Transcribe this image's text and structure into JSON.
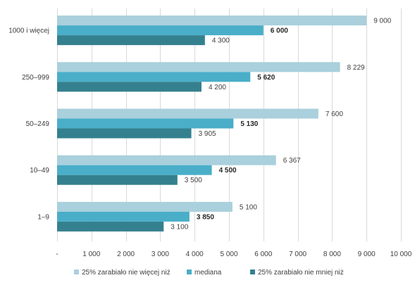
{
  "chart_data": {
    "type": "bar",
    "orientation": "horizontal",
    "title": "",
    "xlabel": "",
    "ylabel": "",
    "categories": [
      "1000 i więcej",
      "250–999",
      "50–249",
      "10–49",
      "1–9"
    ],
    "series": [
      {
        "name": "25% zarabiało nie więcej niż",
        "color": "#a9d0dc",
        "values": [
          9000,
          8229,
          7600,
          6367,
          5100
        ],
        "labels": [
          "9 000",
          "8 229",
          "7 600",
          "6 367",
          "5 100"
        ],
        "bold": false
      },
      {
        "name": "mediana",
        "color": "#4aaec9",
        "values": [
          6000,
          5620,
          5130,
          4500,
          3850
        ],
        "labels": [
          "6 000",
          "5 620",
          "5 130",
          "4 500",
          "3 850"
        ],
        "bold": true
      },
      {
        "name": "25% zarabiało nie mniej niż",
        "color": "#35808f",
        "values": [
          4300,
          4200,
          3905,
          3500,
          3100
        ],
        "labels": [
          "4 300",
          "4 200",
          "3 905",
          "3 500",
          "3 100"
        ],
        "bold": false
      }
    ],
    "xlim": [
      0,
      10000
    ],
    "xticks": [
      0,
      1000,
      2000,
      3000,
      4000,
      5000,
      6000,
      7000,
      8000,
      9000,
      10000
    ],
    "xtick_labels": [
      "-",
      "1 000",
      "2 000",
      "3 000",
      "4 000",
      "5 000",
      "6 000",
      "7 000",
      "8 000",
      "9 000",
      "10 000"
    ],
    "grid": "vertical",
    "legend_position": "bottom"
  }
}
